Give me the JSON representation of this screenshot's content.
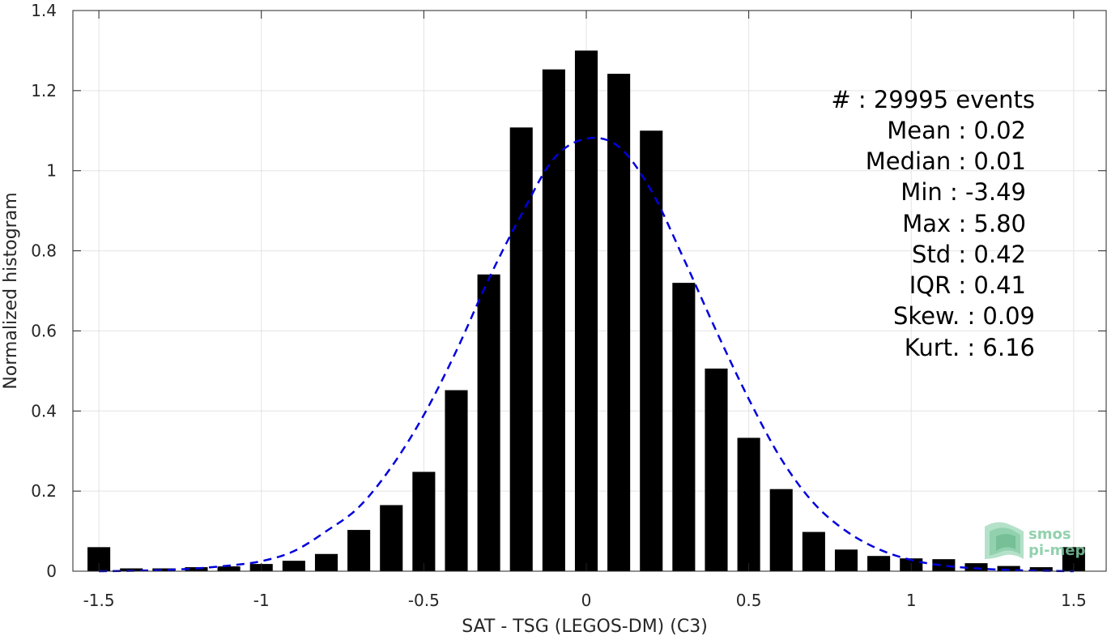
{
  "chart_data": {
    "type": "bar",
    "xlabel": "SAT - TSG (LEGOS-DM) (C3)",
    "ylabel": "Normalized histogram",
    "xlim": [
      -1.58,
      1.6
    ],
    "ylim": [
      0,
      1.4
    ],
    "grid": true,
    "xticks": [
      -1.5,
      -1,
      -0.5,
      0,
      0.5,
      1,
      1.5
    ],
    "xtick_labels": [
      "-1.5",
      "-1",
      "-0.5",
      "0",
      "0.5",
      "1",
      "1.5"
    ],
    "yticks": [
      0,
      0.2,
      0.4,
      0.6,
      0.8,
      1,
      1.2,
      1.4
    ],
    "ytick_labels": [
      "0",
      "0.2",
      "0.4",
      "0.6",
      "0.8",
      "1",
      "1.2",
      "1.4"
    ],
    "bar_color": "#000000",
    "bar_width": 0.07,
    "bins": [
      -1.5,
      -1.4,
      -1.3,
      -1.2,
      -1.1,
      -1.0,
      -0.9,
      -0.8,
      -0.7,
      -0.6,
      -0.5,
      -0.4,
      -0.3,
      -0.2,
      -0.1,
      0.0,
      0.1,
      0.2,
      0.3,
      0.4,
      0.5,
      0.6,
      0.7,
      0.8,
      0.9,
      1.0,
      1.1,
      1.2,
      1.3,
      1.4,
      1.5
    ],
    "values": [
      0.06,
      0.007,
      0.007,
      0.01,
      0.012,
      0.018,
      0.026,
      0.043,
      0.103,
      0.165,
      0.248,
      0.452,
      0.741,
      1.108,
      1.253,
      1.3,
      1.242,
      1.1,
      0.72,
      0.506,
      0.333,
      0.205,
      0.098,
      0.054,
      0.038,
      0.032,
      0.03,
      0.02,
      0.013,
      0.01,
      0.06
    ],
    "fit_curve": {
      "type": "gaussian",
      "color": "#0000dd",
      "style": "dashed",
      "x": [
        -1.5,
        -1.4,
        -1.3,
        -1.2,
        -1.1,
        -1.0,
        -0.9,
        -0.8,
        -0.7,
        -0.6,
        -0.5,
        -0.4,
        -0.3,
        -0.2,
        -0.1,
        0.0,
        0.1,
        0.2,
        0.3,
        0.4,
        0.5,
        0.6,
        0.7,
        0.8,
        0.9,
        1.0,
        1.1,
        1.2,
        1.3,
        1.4,
        1.5
      ],
      "y": [
        0.0,
        0.001,
        0.003,
        0.007,
        0.014,
        0.025,
        0.05,
        0.1,
        0.16,
        0.26,
        0.39,
        0.55,
        0.73,
        0.89,
        1.03,
        1.08,
        1.06,
        0.95,
        0.78,
        0.6,
        0.43,
        0.28,
        0.17,
        0.1,
        0.055,
        0.028,
        0.014,
        0.007,
        0.003,
        0.001,
        0.0
      ]
    }
  },
  "stats": {
    "events": "#  : 29995 events",
    "mean": "Mean : 0.02",
    "median": "Median : 0.01",
    "min": "Min : -3.49",
    "max": "Max : 5.80",
    "std": "Std : 0.42",
    "iqr": "IQR : 0.41",
    "skew": "Skew. : 0.09",
    "kurt": "Kurt. : 6.16"
  },
  "logo": {
    "line1": "smos",
    "line2": "pi-mep"
  }
}
